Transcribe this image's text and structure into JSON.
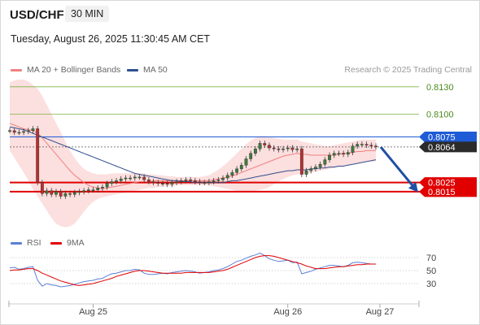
{
  "header": {
    "pair": "USD/CHF",
    "timeframe": "30 MIN",
    "datetime": "Tuesday, August 26, 2025 11:30:45 AM CET",
    "credit": "Research © 2025 Trading Central"
  },
  "legend": {
    "ma20_label": "MA 20 + Bollinger Bands",
    "ma20_color": "#f08080",
    "ma50_label": "MA 50",
    "ma50_color": "#2f4f8f",
    "rsi_label": "RSI",
    "rsi_color": "#5b7fd6",
    "ma9_label": "9MA",
    "ma9_color": "#e00000"
  },
  "chart_data": [
    {
      "type": "candlestick",
      "ylim": [
        0.7965,
        0.8145
      ],
      "x_ticks": [
        "Aug 25",
        "Aug 26",
        "Aug 27"
      ],
      "levels": [
        {
          "value": 0.813,
          "label": "0.8130",
          "style": "resistance",
          "color": "#7cb342"
        },
        {
          "value": 0.81,
          "label": "0.8100",
          "style": "resistance",
          "color": "#7cb342"
        },
        {
          "value": 0.8075,
          "label": "0.8075",
          "style": "pivot",
          "color": "#1e5bd6"
        },
        {
          "value": 0.8064,
          "label": "0.8064",
          "style": "last-price",
          "color": "#2b2b2b"
        },
        {
          "value": 0.8025,
          "label": "0.8025",
          "style": "support",
          "color": "#e00000"
        },
        {
          "value": 0.8015,
          "label": "0.8015",
          "style": "support",
          "color": "#e00000"
        }
      ],
      "close": [
        0.8082,
        0.808,
        0.808,
        0.8081,
        0.8082,
        0.8084,
        0.8025,
        0.8013,
        0.8016,
        0.8012,
        0.8015,
        0.801,
        0.8013,
        0.8012,
        0.8014,
        0.8015,
        0.8016,
        0.8017,
        0.8017,
        0.8019,
        0.802,
        0.8024,
        0.8026,
        0.8027,
        0.8029,
        0.803,
        0.803,
        0.8031,
        0.8031,
        0.8028,
        0.8026,
        0.8025,
        0.8024,
        0.8024,
        0.8023,
        0.8025,
        0.8026,
        0.8027,
        0.8028,
        0.8027,
        0.8026,
        0.8025,
        0.8025,
        0.8026,
        0.8027,
        0.8028,
        0.803,
        0.8033,
        0.8036,
        0.804,
        0.8044,
        0.8051,
        0.8057,
        0.8062,
        0.8068,
        0.8066,
        0.8063,
        0.8062,
        0.8061,
        0.8062,
        0.8063,
        0.8061,
        0.8062,
        0.8034,
        0.8038,
        0.804,
        0.8042,
        0.8045,
        0.805,
        0.8055,
        0.8057,
        0.8057,
        0.8056,
        0.8058,
        0.8065,
        0.8067,
        0.8067,
        0.8066,
        0.8065,
        0.8064
      ],
      "open_offset_note": "",
      "ma20": [
        0.809,
        0.8088,
        0.8086,
        0.8084,
        0.8083,
        0.8082,
        0.8079,
        0.8074,
        0.8068,
        0.8062,
        0.8056,
        0.805,
        0.8044,
        0.8038,
        0.8033,
        0.8029,
        0.8025,
        0.8022,
        0.802,
        0.8019,
        0.8018,
        0.8019,
        0.802,
        0.8021,
        0.8022,
        0.8023,
        0.8024,
        0.8025,
        0.8026,
        0.8026,
        0.8026,
        0.8027,
        0.8027,
        0.8027,
        0.8027,
        0.8027,
        0.8027,
        0.8027,
        0.8027,
        0.8027,
        0.8027,
        0.8027,
        0.8027,
        0.8027,
        0.8028,
        0.8029,
        0.803,
        0.8031,
        0.8032,
        0.8034,
        0.8036,
        0.8038,
        0.804,
        0.8042,
        0.8044,
        0.8046,
        0.8048,
        0.805,
        0.8052,
        0.8054,
        0.8055,
        0.8056,
        0.8057,
        0.8056,
        0.8056,
        0.8055,
        0.8055,
        0.8055,
        0.8055,
        0.8055,
        0.8055,
        0.8056,
        0.8057,
        0.8057,
        0.8058,
        0.8059,
        0.8059,
        0.806,
        0.806,
        0.806
      ],
      "bb_upper": [
        0.8135,
        0.8137,
        0.8138,
        0.8138,
        0.8136,
        0.8132,
        0.8128,
        0.812,
        0.811,
        0.81,
        0.809,
        0.808,
        0.807,
        0.806,
        0.8052,
        0.8045,
        0.804,
        0.8037,
        0.8035,
        0.8034,
        0.8034,
        0.8034,
        0.8035,
        0.8035,
        0.8035,
        0.8035,
        0.8035,
        0.8035,
        0.8035,
        0.8035,
        0.8034,
        0.8034,
        0.8033,
        0.8033,
        0.8032,
        0.8032,
        0.8031,
        0.8031,
        0.8031,
        0.8031,
        0.8031,
        0.8031,
        0.8032,
        0.8033,
        0.8036,
        0.8039,
        0.8043,
        0.8047,
        0.8052,
        0.8057,
        0.8062,
        0.8067,
        0.8071,
        0.8074,
        0.8076,
        0.8076,
        0.8075,
        0.8074,
        0.8073,
        0.8072,
        0.8072,
        0.8072,
        0.8072,
        0.807,
        0.8069,
        0.8068,
        0.8067,
        0.8066,
        0.8065,
        0.8065,
        0.8066,
        0.8067,
        0.8068,
        0.8069,
        0.807,
        0.8071,
        0.8072,
        0.8072,
        0.8072,
        0.8072
      ],
      "bb_lower": [
        0.806,
        0.8052,
        0.8044,
        0.8036,
        0.8027,
        0.8018,
        0.801,
        0.8002,
        0.7994,
        0.7986,
        0.798,
        0.7977,
        0.7976,
        0.7977,
        0.798,
        0.7986,
        0.7993,
        0.7999,
        0.8004,
        0.8007,
        0.8009,
        0.801,
        0.8011,
        0.8012,
        0.8013,
        0.8014,
        0.8015,
        0.8016,
        0.8017,
        0.8018,
        0.8019,
        0.8019,
        0.802,
        0.802,
        0.8021,
        0.8021,
        0.8022,
        0.8022,
        0.8022,
        0.8022,
        0.8022,
        0.8022,
        0.8022,
        0.8022,
        0.8021,
        0.802,
        0.8019,
        0.8018,
        0.8017,
        0.8016,
        0.8016,
        0.8015,
        0.8015,
        0.8016,
        0.8017,
        0.8018,
        0.802,
        0.8023,
        0.8026,
        0.8029,
        0.8031,
        0.8033,
        0.8034,
        0.8034,
        0.8035,
        0.8036,
        0.8037,
        0.8038,
        0.8039,
        0.804,
        0.8041,
        0.8042,
        0.8043,
        0.8044,
        0.8045,
        0.8046,
        0.8047,
        0.8048,
        0.8048,
        0.8048
      ],
      "ma50": [
        0.8086,
        0.8085,
        0.8084,
        0.8083,
        0.8081,
        0.8079,
        0.8077,
        0.8075,
        0.8073,
        0.8071,
        0.8069,
        0.8067,
        0.8065,
        0.8063,
        0.8061,
        0.8059,
        0.8057,
        0.8055,
        0.8053,
        0.8051,
        0.8049,
        0.8047,
        0.8045,
        0.8043,
        0.8041,
        0.8039,
        0.8037,
        0.8035,
        0.8034,
        0.8033,
        0.8032,
        0.8031,
        0.803,
        0.8029,
        0.8028,
        0.8027,
        0.8027,
        0.8026,
        0.8026,
        0.8026,
        0.8025,
        0.8025,
        0.8025,
        0.8025,
        0.8025,
        0.8025,
        0.8025,
        0.8026,
        0.8027,
        0.8027,
        0.8028,
        0.8029,
        0.803,
        0.8031,
        0.8032,
        0.8033,
        0.8034,
        0.8035,
        0.8036,
        0.8037,
        0.8038,
        0.8038,
        0.8039,
        0.8039,
        0.8039,
        0.804,
        0.804,
        0.8041,
        0.8041,
        0.8042,
        0.8042,
        0.8043,
        0.8043,
        0.8044,
        0.8045,
        0.8046,
        0.8047,
        0.8048,
        0.8049,
        0.805
      ],
      "projection": {
        "from": 0.8064,
        "to": 0.8015
      }
    },
    {
      "type": "line",
      "name": "RSI panel",
      "ylim": [
        10,
        85
      ],
      "y_ticks": [
        70,
        50,
        30
      ],
      "rsi": [
        54,
        55,
        52,
        53,
        55,
        56,
        35,
        26,
        30,
        28,
        27,
        25,
        26,
        27,
        29,
        31,
        33,
        34,
        35,
        37,
        38,
        42,
        45,
        46,
        48,
        50,
        50,
        52,
        51,
        46,
        44,
        44,
        45,
        46,
        45,
        47,
        48,
        49,
        50,
        49,
        48,
        46,
        47,
        48,
        50,
        51,
        53,
        56,
        60,
        64,
        66,
        69,
        72,
        74,
        77,
        73,
        68,
        66,
        64,
        65,
        66,
        62,
        63,
        45,
        47,
        49,
        52,
        54,
        56,
        58,
        58,
        57,
        56,
        58,
        62,
        63,
        62,
        61,
        60,
        60
      ],
      "ma9": [
        50,
        51,
        51,
        52,
        53,
        53,
        50,
        46,
        43,
        40,
        37,
        34,
        32,
        30,
        28,
        27,
        28,
        29,
        30,
        32,
        34,
        36,
        38,
        41,
        43,
        45,
        47,
        49,
        50,
        50,
        49,
        48,
        47,
        46,
        46,
        46,
        46,
        46,
        47,
        47,
        47,
        47,
        47,
        47,
        48,
        49,
        50,
        52,
        55,
        58,
        61,
        64,
        67,
        70,
        72,
        73,
        73,
        72,
        70,
        68,
        66,
        64,
        62,
        60,
        57,
        55,
        53,
        53,
        53,
        54,
        55,
        56,
        56,
        57,
        58,
        59,
        59,
        60,
        60,
        60
      ]
    }
  ]
}
